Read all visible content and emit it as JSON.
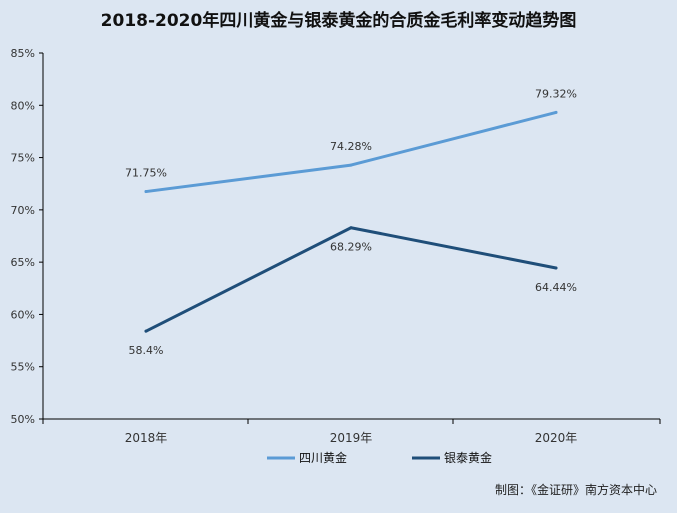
{
  "chart_data": {
    "type": "line",
    "title": "2018-2020年四川黄金与银泰黄金的合质金毛利率变动趋势图",
    "categories": [
      "2018年",
      "2019年",
      "2020年"
    ],
    "y_ticks": [
      "50%",
      "55%",
      "60%",
      "65%",
      "70%",
      "75%",
      "80%",
      "85%"
    ],
    "ylim": [
      50,
      85
    ],
    "xlabel": "",
    "ylabel": "",
    "grid": false,
    "legend_position": "bottom",
    "series": [
      {
        "name": "四川黄金",
        "values": [
          71.75,
          74.28,
          79.32
        ],
        "labels": [
          "71.75%",
          "74.28%",
          "79.32%"
        ],
        "label_position": "above",
        "color": "#5b9bd5"
      },
      {
        "name": "银泰黄金",
        "values": [
          58.4,
          68.29,
          64.44
        ],
        "labels": [
          "58.4%",
          "68.29%",
          "64.44%"
        ],
        "label_position": "below",
        "color": "#1f4e79"
      }
    ]
  },
  "source_note": "制图：《金证研》南方资本中心"
}
